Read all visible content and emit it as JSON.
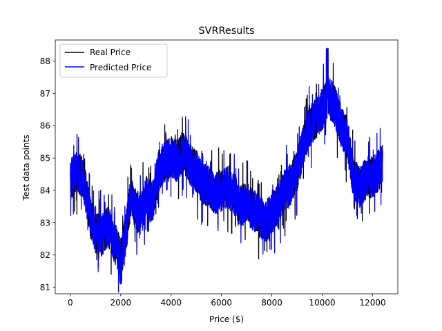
{
  "chart_data": {
    "type": "line",
    "title": "SVRResults",
    "xlabel": "Price ($)",
    "ylabel": "Test data points",
    "xlim": [
      -600,
      13000
    ],
    "ylim": [
      80.8,
      88.65
    ],
    "xticks": [
      0,
      2000,
      4000,
      6000,
      8000,
      10000,
      12000
    ],
    "yticks": [
      81,
      82,
      83,
      84,
      85,
      86,
      87,
      88
    ],
    "legend_position": "upper-left",
    "grid": false,
    "n_points": 12400,
    "series": [
      {
        "name": "Real Price",
        "color": "#000000",
        "approximate_path": [
          [
            0,
            84.3
          ],
          [
            250,
            84.6
          ],
          [
            500,
            84.4
          ],
          [
            750,
            83.4
          ],
          [
            1000,
            82.7
          ],
          [
            1250,
            82.6
          ],
          [
            1500,
            82.9
          ],
          [
            1750,
            82.4
          ],
          [
            2000,
            81.9
          ],
          [
            2200,
            82.6
          ],
          [
            2400,
            83.8
          ],
          [
            2600,
            83.4
          ],
          [
            2800,
            83.2
          ],
          [
            3000,
            83.8
          ],
          [
            3250,
            83.6
          ],
          [
            3500,
            84.6
          ],
          [
            3750,
            84.9
          ],
          [
            4000,
            85.0
          ],
          [
            4250,
            84.9
          ],
          [
            4500,
            85.2
          ],
          [
            4750,
            84.8
          ],
          [
            5000,
            84.6
          ],
          [
            5250,
            84.2
          ],
          [
            5500,
            84.1
          ],
          [
            5750,
            83.9
          ],
          [
            6000,
            84.0
          ],
          [
            6250,
            84.1
          ],
          [
            6500,
            83.9
          ],
          [
            6750,
            83.5
          ],
          [
            7000,
            83.6
          ],
          [
            7250,
            83.4
          ],
          [
            7500,
            83.2
          ],
          [
            7750,
            83.0
          ],
          [
            8000,
            83.3
          ],
          [
            8250,
            83.6
          ],
          [
            8500,
            84.0
          ],
          [
            8750,
            84.2
          ],
          [
            9000,
            84.6
          ],
          [
            9250,
            85.4
          ],
          [
            9500,
            86.0
          ],
          [
            9750,
            86.2
          ],
          [
            10000,
            86.5
          ],
          [
            10250,
            86.9
          ],
          [
            10500,
            86.6
          ],
          [
            10750,
            86.0
          ],
          [
            11000,
            85.6
          ],
          [
            11250,
            84.3
          ],
          [
            11500,
            84.1
          ],
          [
            11750,
            84.4
          ],
          [
            12000,
            84.4
          ],
          [
            12200,
            84.6
          ],
          [
            12400,
            84.8
          ]
        ]
      },
      {
        "name": "Predicted Price",
        "color": "#0000ff",
        "approximate_path": [
          [
            0,
            84.3
          ],
          [
            250,
            84.6
          ],
          [
            500,
            84.4
          ],
          [
            750,
            83.4
          ],
          [
            1000,
            82.7
          ],
          [
            1250,
            82.6
          ],
          [
            1500,
            82.9
          ],
          [
            1750,
            82.4
          ],
          [
            2000,
            81.9
          ],
          [
            2200,
            82.6
          ],
          [
            2400,
            83.8
          ],
          [
            2600,
            83.4
          ],
          [
            2800,
            83.2
          ],
          [
            3000,
            83.8
          ],
          [
            3250,
            83.6
          ],
          [
            3500,
            84.6
          ],
          [
            3750,
            84.9
          ],
          [
            4000,
            85.0
          ],
          [
            4250,
            84.9
          ],
          [
            4500,
            85.2
          ],
          [
            4750,
            84.8
          ],
          [
            5000,
            84.6
          ],
          [
            5250,
            84.2
          ],
          [
            5500,
            84.1
          ],
          [
            5750,
            83.9
          ],
          [
            6000,
            84.0
          ],
          [
            6250,
            84.1
          ],
          [
            6500,
            83.9
          ],
          [
            6750,
            83.5
          ],
          [
            7000,
            83.6
          ],
          [
            7250,
            83.4
          ],
          [
            7500,
            83.2
          ],
          [
            7750,
            83.0
          ],
          [
            8000,
            83.3
          ],
          [
            8250,
            83.6
          ],
          [
            8500,
            84.0
          ],
          [
            8750,
            84.2
          ],
          [
            9000,
            84.6
          ],
          [
            9250,
            85.4
          ],
          [
            9500,
            86.0
          ],
          [
            9750,
            86.2
          ],
          [
            10000,
            86.5
          ],
          [
            10250,
            86.9
          ],
          [
            10500,
            86.6
          ],
          [
            10750,
            86.0
          ],
          [
            11000,
            85.6
          ],
          [
            11250,
            84.3
          ],
          [
            11500,
            84.1
          ],
          [
            11750,
            84.4
          ],
          [
            12000,
            84.4
          ],
          [
            12200,
            84.6
          ],
          [
            12400,
            84.8
          ]
        ]
      }
    ],
    "observed_extremes": {
      "max": 88.4,
      "max_near_x": 10200,
      "min": 81.1,
      "min_near_x": 2000
    }
  }
}
